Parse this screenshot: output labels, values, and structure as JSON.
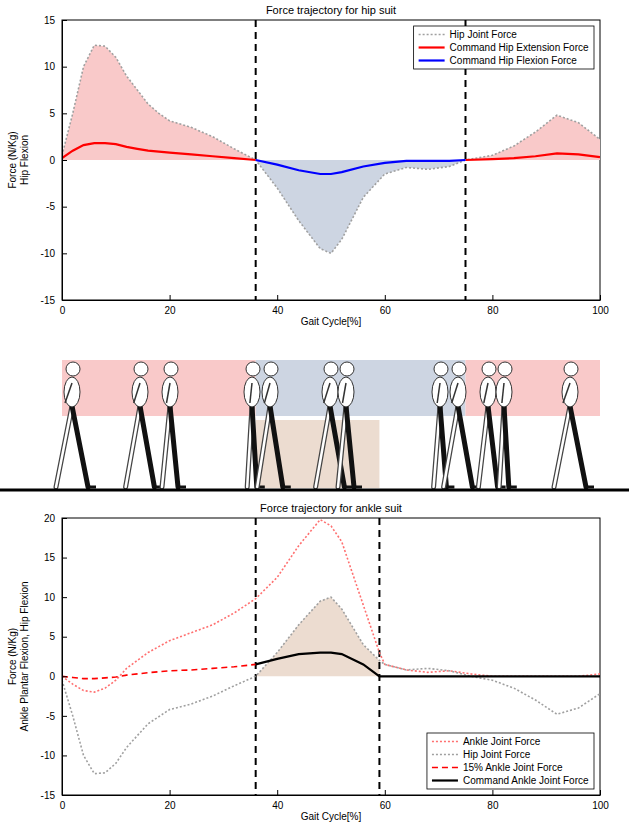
{
  "chart_data": [
    {
      "type": "line",
      "title": "Force trajectory for hip suit",
      "x_label": "Gait Cycle[%]",
      "y_label": [
        "Force (N/Kg)",
        "Hip Flexion"
      ],
      "xlim": [
        0,
        100
      ],
      "xticks": [
        0,
        20,
        40,
        60,
        80,
        100
      ],
      "ylim": [
        -15,
        15
      ],
      "yticks": [
        -15,
        -10,
        -5,
        0,
        5,
        10,
        15
      ],
      "grid": false,
      "legend": "upper right",
      "vlines": [
        36,
        75
      ],
      "x": [
        0,
        2,
        4,
        6,
        8,
        10,
        12,
        14,
        16,
        18,
        20,
        24,
        28,
        32,
        36,
        40,
        44,
        48,
        50,
        52,
        56,
        60,
        64,
        68,
        72,
        75,
        80,
        84,
        88,
        92,
        96,
        100
      ],
      "series": [
        {
          "name": "Hip Joint Force",
          "color": "#a0a0a0",
          "line_style": "dotted",
          "values": [
            0.5,
            5,
            10,
            12.3,
            12.2,
            11,
            9,
            7.5,
            6,
            5,
            4.2,
            3.5,
            2.5,
            1.2,
            0,
            -3,
            -6.5,
            -9.5,
            -10,
            -8.5,
            -4,
            -1.5,
            -0.8,
            -1,
            -0.7,
            0,
            0.5,
            1.5,
            3,
            4.8,
            4,
            2.2
          ]
        },
        {
          "name": "Command Hip Extension Force",
          "color": "#ff0000",
          "line_style": "solid",
          "values": [
            0.2,
            1,
            1.6,
            1.8,
            1.8,
            1.7,
            1.4,
            1.2,
            1,
            0.9,
            0.8,
            0.6,
            0.4,
            0.2,
            0,
            null,
            null,
            null,
            null,
            null,
            null,
            null,
            null,
            null,
            null,
            0,
            0.1,
            0.2,
            0.4,
            0.7,
            0.6,
            0.3
          ]
        },
        {
          "name": "Command Hip Flexion Force",
          "color": "#0000ff",
          "line_style": "solid",
          "values": [
            null,
            null,
            null,
            null,
            null,
            null,
            null,
            null,
            null,
            null,
            null,
            null,
            null,
            null,
            0,
            -0.5,
            -1.1,
            -1.5,
            -1.5,
            -1.3,
            -0.7,
            -0.3,
            -0.1,
            -0.1,
            -0.1,
            0,
            null,
            null,
            null,
            null,
            null,
            null
          ]
        }
      ]
    },
    {
      "type": "line",
      "title": "Force trajectory for ankle suit",
      "x_label": "Gait Cycle[%]",
      "y_label": [
        "Force (N/Kg)",
        "Ankle Plantar Flexion, Hip Flexion"
      ],
      "xlim": [
        0,
        100
      ],
      "xticks": [
        0,
        20,
        40,
        60,
        80,
        100
      ],
      "ylim": [
        -15,
        20
      ],
      "yticks": [
        -15,
        -10,
        -5,
        0,
        5,
        10,
        15,
        20
      ],
      "grid": false,
      "legend": "lower right",
      "vlines": [
        36,
        59
      ],
      "x": [
        0,
        2,
        4,
        6,
        8,
        10,
        12,
        16,
        20,
        24,
        28,
        32,
        36,
        40,
        44,
        48,
        50,
        52,
        56,
        59,
        60,
        64,
        68,
        72,
        76,
        80,
        84,
        88,
        92,
        96,
        100
      ],
      "series": [
        {
          "name": "Ankle Joint Force",
          "color": "#ff7070",
          "line_style": "dotted",
          "values": [
            0,
            -1,
            -1.8,
            -2,
            -1.5,
            -0.5,
            1,
            3,
            4.5,
            5.5,
            6.5,
            8,
            9.8,
            12.5,
            16.5,
            19.8,
            19,
            17,
            9,
            3,
            1.5,
            0.8,
            0.5,
            0.7,
            0.3,
            0,
            0,
            0,
            0,
            0,
            0.3
          ]
        },
        {
          "name": "Hip Joint Force",
          "color": "#a0a0a0",
          "line_style": "dotted",
          "values": [
            -0.5,
            -5,
            -10,
            -12.3,
            -12.2,
            -11,
            -9,
            -6,
            -4.2,
            -3.5,
            -2.5,
            -1.2,
            0,
            3,
            6.5,
            9.5,
            10,
            8.5,
            4,
            2,
            1.5,
            0.8,
            1,
            0.7,
            0,
            -0.5,
            -1.5,
            -3,
            -4.8,
            -4,
            -2.2
          ]
        },
        {
          "name": "15% Ankle Joint Force",
          "color": "#ff0000",
          "line_style": "dashed",
          "values": [
            0,
            -0.15,
            -0.3,
            -0.3,
            -0.2,
            -0.1,
            0.15,
            0.45,
            0.7,
            0.8,
            1,
            1.2,
            1.5,
            null,
            null,
            null,
            null,
            null,
            null,
            null,
            null,
            null,
            null,
            null,
            null,
            null,
            null,
            null,
            null,
            null,
            null
          ]
        },
        {
          "name": "Command Ankle Joint Force",
          "color": "#000000",
          "line_style": "solid",
          "values": [
            null,
            null,
            null,
            null,
            null,
            null,
            null,
            null,
            null,
            null,
            null,
            null,
            1.5,
            2.2,
            2.8,
            3,
            3,
            2.8,
            1.5,
            0,
            0,
            0,
            0,
            0,
            0,
            0,
            0,
            0,
            0,
            0,
            0
          ]
        }
      ]
    }
  ]
}
